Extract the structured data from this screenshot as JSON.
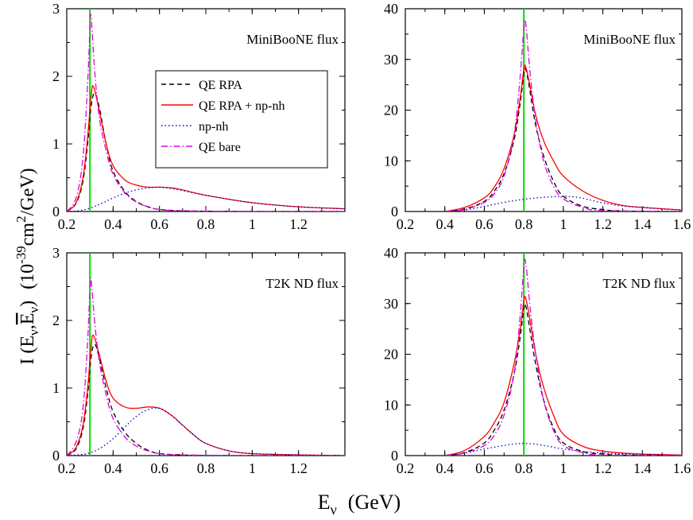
{
  "figure": {
    "xlabel": {
      "main": "E",
      "sub": "ν",
      "unit": "(GeV)"
    },
    "ylabel": {
      "I": "I (E",
      "sub1": "ν",
      "comma": ",",
      "Ebar": "E",
      "sub2": "ν",
      "close": ")",
      "pre": "(10",
      "exp1": "-39",
      "mid": "cm",
      "exp2": "2",
      "end": "/GeV)"
    }
  },
  "colors": {
    "qe_rpa": "#000000",
    "qe_rpa_npnh": "#ff0000",
    "npnh": "#0000cc",
    "qe_bare": "#e000e0",
    "marker": "#00dd00"
  },
  "legend": {
    "items": [
      "QE RPA",
      "QE RPA + np-nh",
      "np-nh",
      "QE bare"
    ]
  },
  "chart_data": [
    {
      "type": "line",
      "annotation": "MiniBooNE flux",
      "xlim": [
        0.2,
        1.4
      ],
      "ylim": [
        0,
        3
      ],
      "xticks": [
        "0.2",
        "0.4",
        "0.6",
        "0.8",
        "1",
        "1.2"
      ],
      "yticks": [
        "0",
        "1",
        "2",
        "3"
      ],
      "marker_x": 0.3,
      "series": [
        {
          "name": "QE RPA",
          "key": "qe_rpa",
          "dash": "6,4",
          "x": [
            0.2,
            0.24,
            0.27,
            0.29,
            0.305,
            0.32,
            0.34,
            0.37,
            0.4,
            0.45,
            0.5,
            0.55,
            0.6,
            0.7,
            0.8,
            1.0,
            1.2,
            1.4
          ],
          "y": [
            0,
            0.12,
            0.45,
            1.0,
            1.55,
            1.75,
            1.55,
            1.0,
            0.6,
            0.3,
            0.15,
            0.07,
            0.03,
            0.01,
            0.005,
            0,
            0,
            0
          ]
        },
        {
          "name": "QE RPA + np-nh",
          "key": "qe_rpa_npnh",
          "dash": "",
          "x": [
            0.2,
            0.24,
            0.27,
            0.29,
            0.305,
            0.315,
            0.34,
            0.37,
            0.4,
            0.45,
            0.5,
            0.55,
            0.6,
            0.65,
            0.7,
            0.8,
            1.0,
            1.2,
            1.4
          ],
          "y": [
            0,
            0.13,
            0.5,
            1.1,
            1.7,
            1.85,
            1.5,
            1.0,
            0.68,
            0.47,
            0.39,
            0.36,
            0.36,
            0.35,
            0.32,
            0.24,
            0.13,
            0.07,
            0.04
          ]
        },
        {
          "name": "np-nh",
          "key": "npnh",
          "dash": "1.5,3",
          "x": [
            0.2,
            0.25,
            0.3,
            0.35,
            0.4,
            0.45,
            0.5,
            0.55,
            0.6,
            0.65,
            0.7,
            0.8,
            1.0,
            1.2,
            1.4
          ],
          "y": [
            0,
            0.01,
            0.05,
            0.12,
            0.2,
            0.27,
            0.32,
            0.35,
            0.36,
            0.34,
            0.31,
            0.24,
            0.13,
            0.07,
            0.04
          ]
        },
        {
          "name": "QE bare",
          "key": "qe_bare",
          "dash": "8,3,1.5,3",
          "x": [
            0.2,
            0.24,
            0.27,
            0.29,
            0.3,
            0.305,
            0.32,
            0.34,
            0.37,
            0.4,
            0.45,
            0.5,
            0.55,
            0.6,
            0.7,
            1.0,
            1.4
          ],
          "y": [
            0,
            0.2,
            0.8,
            1.9,
            2.7,
            2.88,
            2.1,
            1.4,
            0.9,
            0.55,
            0.28,
            0.14,
            0.07,
            0.03,
            0.01,
            0,
            0
          ]
        }
      ]
    },
    {
      "type": "line",
      "annotation": "MiniBooNE flux",
      "xlim": [
        0.2,
        1.6
      ],
      "ylim": [
        0,
        40
      ],
      "xticks": [
        "0.2",
        "0.4",
        "0.6",
        "0.8",
        "1",
        "1.2",
        "1.4",
        "1.6"
      ],
      "yticks": [
        "0",
        "10",
        "20",
        "30",
        "40"
      ],
      "marker_x": 0.8,
      "series": [
        {
          "name": "QE RPA",
          "key": "qe_rpa",
          "dash": "6,4",
          "x": [
            0.4,
            0.5,
            0.6,
            0.65,
            0.7,
            0.75,
            0.78,
            0.8,
            0.81,
            0.83,
            0.86,
            0.9,
            0.95,
            1.0,
            1.1,
            1.2,
            1.3,
            1.6
          ],
          "y": [
            0,
            0.5,
            2.0,
            4.0,
            7.5,
            14,
            21,
            27,
            28,
            24,
            17,
            11,
            6,
            3,
            1,
            0.4,
            0.1,
            0
          ]
        },
        {
          "name": "QE RPA + np-nh",
          "key": "qe_rpa_npnh",
          "dash": "",
          "x": [
            0.4,
            0.5,
            0.6,
            0.65,
            0.7,
            0.75,
            0.78,
            0.8,
            0.81,
            0.83,
            0.86,
            0.9,
            0.95,
            1.0,
            1.1,
            1.2,
            1.3,
            1.4,
            1.6
          ],
          "y": [
            0,
            0.8,
            2.7,
            4.8,
            8.5,
            15,
            22,
            28,
            28.5,
            25,
            19,
            14,
            10,
            7,
            4,
            2.2,
            1.2,
            0.8,
            0.3
          ]
        },
        {
          "name": "np-nh",
          "key": "npnh",
          "dash": "1.5,3",
          "x": [
            0.4,
            0.5,
            0.6,
            0.7,
            0.8,
            0.9,
            1.0,
            1.05,
            1.1,
            1.2,
            1.3,
            1.4,
            1.5,
            1.6
          ],
          "y": [
            0,
            0.3,
            1.0,
            1.8,
            2.4,
            2.8,
            3.0,
            2.9,
            2.6,
            1.7,
            1.1,
            0.8,
            0.5,
            0.3
          ]
        },
        {
          "name": "QE bare",
          "key": "qe_bare",
          "dash": "8,3,1.5,3",
          "x": [
            0.4,
            0.5,
            0.6,
            0.65,
            0.7,
            0.75,
            0.78,
            0.8,
            0.81,
            0.83,
            0.86,
            0.9,
            0.95,
            1.0,
            1.1,
            1.2,
            1.6
          ],
          "y": [
            0,
            0.4,
            1.8,
            3.5,
            7.0,
            15,
            26,
            36,
            37,
            28,
            18,
            10,
            5,
            2.5,
            0.8,
            0.2,
            0
          ]
        }
      ]
    },
    {
      "type": "line",
      "annotation": "T2K ND flux",
      "xlim": [
        0.2,
        1.4
      ],
      "ylim": [
        0,
        3
      ],
      "xticks": [
        "0.2",
        "0.4",
        "0.6",
        "0.8",
        "1",
        "1.2"
      ],
      "yticks": [
        "0",
        "1",
        "2",
        "3"
      ],
      "marker_x": 0.3,
      "series": [
        {
          "name": "QE RPA",
          "key": "qe_rpa",
          "dash": "6,4",
          "x": [
            0.2,
            0.24,
            0.27,
            0.29,
            0.305,
            0.32,
            0.34,
            0.37,
            0.4,
            0.45,
            0.5,
            0.55,
            0.6,
            0.7,
            0.8,
            1.0,
            1.4
          ],
          "y": [
            0,
            0.1,
            0.4,
            0.9,
            1.45,
            1.65,
            1.45,
            1.0,
            0.65,
            0.35,
            0.18,
            0.08,
            0.03,
            0.01,
            0,
            0,
            0
          ]
        },
        {
          "name": "QE RPA + np-nh",
          "key": "qe_rpa_npnh",
          "dash": "",
          "x": [
            0.2,
            0.24,
            0.27,
            0.29,
            0.305,
            0.315,
            0.34,
            0.37,
            0.4,
            0.45,
            0.5,
            0.55,
            0.6,
            0.65,
            0.7,
            0.75,
            0.8,
            0.9,
            1.0,
            1.2,
            1.4
          ],
          "y": [
            0,
            0.12,
            0.45,
            1.0,
            1.6,
            1.78,
            1.5,
            1.1,
            0.85,
            0.72,
            0.7,
            0.72,
            0.7,
            0.6,
            0.45,
            0.3,
            0.18,
            0.07,
            0.03,
            0.01,
            0
          ]
        },
        {
          "name": "np-nh",
          "key": "npnh",
          "dash": "1.5,3",
          "x": [
            0.2,
            0.25,
            0.3,
            0.35,
            0.4,
            0.45,
            0.5,
            0.55,
            0.6,
            0.65,
            0.7,
            0.75,
            0.8,
            0.9,
            1.0,
            1.2,
            1.4
          ],
          "y": [
            0,
            0.01,
            0.04,
            0.12,
            0.25,
            0.42,
            0.58,
            0.68,
            0.7,
            0.6,
            0.45,
            0.3,
            0.18,
            0.07,
            0.03,
            0.01,
            0
          ]
        },
        {
          "name": "QE bare",
          "key": "qe_bare",
          "dash": "8,3,1.5,3",
          "x": [
            0.2,
            0.24,
            0.27,
            0.29,
            0.3,
            0.305,
            0.32,
            0.34,
            0.37,
            0.4,
            0.45,
            0.5,
            0.55,
            0.6,
            0.7,
            1.0,
            1.4
          ],
          "y": [
            0,
            0.2,
            0.7,
            1.7,
            2.45,
            2.6,
            2.0,
            1.4,
            0.9,
            0.55,
            0.28,
            0.14,
            0.07,
            0.03,
            0.01,
            0,
            0
          ]
        }
      ]
    },
    {
      "type": "line",
      "annotation": "T2K ND flux",
      "xlim": [
        0.2,
        1.6
      ],
      "ylim": [
        0,
        40
      ],
      "xticks": [
        "0.2",
        "0.4",
        "0.6",
        "0.8",
        "1",
        "1.2",
        "1.4",
        "1.6"
      ],
      "yticks": [
        "0",
        "10",
        "20",
        "30",
        "40"
      ],
      "marker_x": 0.8,
      "series": [
        {
          "name": "QE RPA",
          "key": "qe_rpa",
          "dash": "6,4",
          "x": [
            0.4,
            0.5,
            0.6,
            0.65,
            0.7,
            0.75,
            0.78,
            0.8,
            0.81,
            0.83,
            0.86,
            0.9,
            0.95,
            1.0,
            1.1,
            1.2,
            1.3,
            1.6
          ],
          "y": [
            0,
            0.6,
            2.5,
            5.0,
            9.0,
            16,
            23,
            29,
            29.5,
            25,
            18,
            11,
            5.5,
            2.5,
            0.8,
            0.3,
            0.1,
            0
          ]
        },
        {
          "name": "QE RPA + np-nh",
          "key": "qe_rpa_npnh",
          "dash": "",
          "x": [
            0.4,
            0.5,
            0.6,
            0.65,
            0.7,
            0.75,
            0.78,
            0.8,
            0.81,
            0.83,
            0.86,
            0.9,
            0.95,
            1.0,
            1.1,
            1.2,
            1.3,
            1.4,
            1.6
          ],
          "y": [
            0,
            1.0,
            3.8,
            6.5,
            10.5,
            18,
            24.5,
            30.5,
            31,
            27,
            20,
            13.5,
            8,
            4.2,
            1.8,
            0.9,
            0.5,
            0.3,
            0.1
          ]
        },
        {
          "name": "np-nh",
          "key": "npnh",
          "dash": "1.5,3",
          "x": [
            0.4,
            0.5,
            0.6,
            0.7,
            0.75,
            0.8,
            0.85,
            0.9,
            1.0,
            1.1,
            1.2,
            1.3,
            1.4,
            1.6
          ],
          "y": [
            0,
            0.5,
            1.3,
            2.0,
            2.3,
            2.4,
            2.3,
            2.0,
            1.3,
            0.8,
            0.5,
            0.3,
            0.2,
            0.1
          ]
        },
        {
          "name": "QE bare",
          "key": "qe_bare",
          "dash": "8,3,1.5,3",
          "x": [
            0.4,
            0.5,
            0.6,
            0.65,
            0.7,
            0.75,
            0.78,
            0.8,
            0.81,
            0.83,
            0.86,
            0.9,
            0.95,
            1.0,
            1.1,
            1.2,
            1.6
          ],
          "y": [
            0,
            0.5,
            2.0,
            4.0,
            8.0,
            16,
            27,
            37,
            38,
            30,
            20,
            11,
            5,
            2,
            0.6,
            0.1,
            0
          ]
        }
      ]
    }
  ]
}
